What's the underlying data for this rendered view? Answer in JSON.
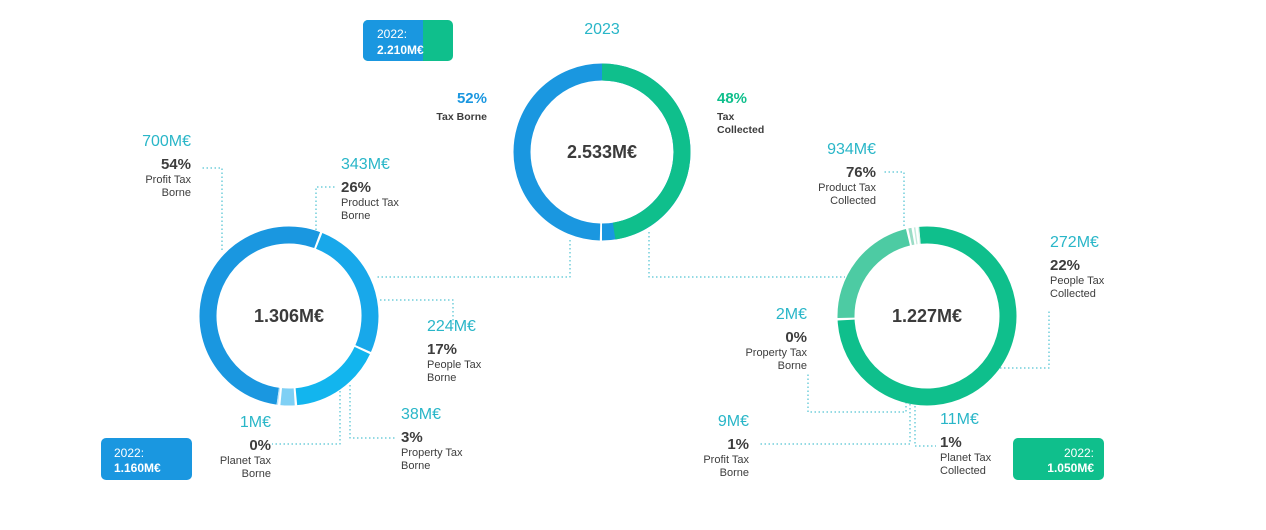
{
  "chart_data": {
    "type": "donut",
    "center": {
      "year": "2023",
      "total": "2.533M€",
      "badge": {
        "label": "2022:",
        "value": "2.210M€"
      },
      "segments": [
        {
          "pct": "52%",
          "label": [
            "Tax Borne"
          ],
          "value": 52,
          "color": "#1a97e0"
        },
        {
          "pct": "48%",
          "label": [
            "Tax",
            "Collected"
          ],
          "value": 48,
          "color": "#0fbf8c"
        }
      ]
    },
    "borne": {
      "total": "1.306M€",
      "badge": {
        "label": "2022:",
        "value": "1.160M€"
      },
      "segments": [
        {
          "amount": "700M€",
          "pct": "54%",
          "label": [
            "Profit Tax",
            "Borne"
          ],
          "value": 54,
          "color": "#1a97e0"
        },
        {
          "amount": "343M€",
          "pct": "26%",
          "label": [
            "Product Tax",
            "Borne"
          ],
          "value": 26,
          "color": "#18a8ea"
        },
        {
          "amount": "224M€",
          "pct": "17%",
          "label": [
            "People Tax",
            "Borne"
          ],
          "value": 17,
          "color": "#12b5ee"
        },
        {
          "amount": "38M€",
          "pct": "3%",
          "label": [
            "Property Tax",
            "Borne"
          ],
          "value": 3,
          "color": "#7fd0f5"
        },
        {
          "amount": "1M€",
          "pct": "0%",
          "label": [
            "Planet Tax",
            "Borne"
          ],
          "value": 0.3,
          "color": "#b7e4fa"
        }
      ]
    },
    "collected": {
      "total": "1.227M€",
      "badge": {
        "label": "2022:",
        "value": "1.050M€"
      },
      "segments": [
        {
          "amount": "934M€",
          "pct": "76%",
          "label": [
            "Product Tax",
            "Collected"
          ],
          "value": 76,
          "color": "#0fbf8c"
        },
        {
          "amount": "272M€",
          "pct": "22%",
          "label": [
            "People Tax",
            "Collected"
          ],
          "value": 22,
          "color": "#4dcba3"
        },
        {
          "amount": "11M€",
          "pct": "1%",
          "label": [
            "Planet Tax",
            "Collected"
          ],
          "value": 1,
          "color": "#9bdcc6"
        },
        {
          "amount": "9M€",
          "pct": "1%",
          "label": [
            "Profit Tax",
            "Borne"
          ],
          "value": 0.7,
          "color": "#c2eadc"
        },
        {
          "amount": "2M€",
          "pct": "0%",
          "label": [
            "Property Tax",
            "Borne"
          ],
          "value": 0.3,
          "color": "#def5ec"
        }
      ]
    }
  }
}
